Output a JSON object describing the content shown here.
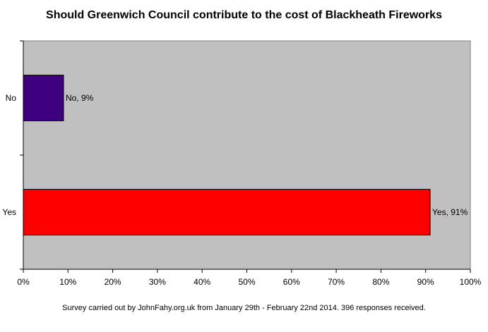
{
  "chart_data": {
    "type": "bar",
    "orientation": "horizontal",
    "title": "Should Greenwich Council contribute to the cost of Blackheath Fireworks",
    "categories": [
      "No",
      "Yes"
    ],
    "values": [
      9,
      91
    ],
    "data_labels": [
      "No, 9%",
      "Yes, 91%"
    ],
    "bar_colors": [
      "#3f007f",
      "#ff0000"
    ],
    "plot_background": "#c0c0c0",
    "xlim": [
      0,
      100
    ],
    "x_ticks": [
      "0%",
      "10%",
      "20%",
      "30%",
      "40%",
      "50%",
      "60%",
      "70%",
      "80%",
      "90%",
      "100%"
    ],
    "xlabel": "",
    "ylabel": "",
    "grid": false,
    "legend": "none",
    "footnote": "Survey carried out by JohnFahy.org.uk from January 29th - February 22nd 2014. 396 responses received."
  }
}
